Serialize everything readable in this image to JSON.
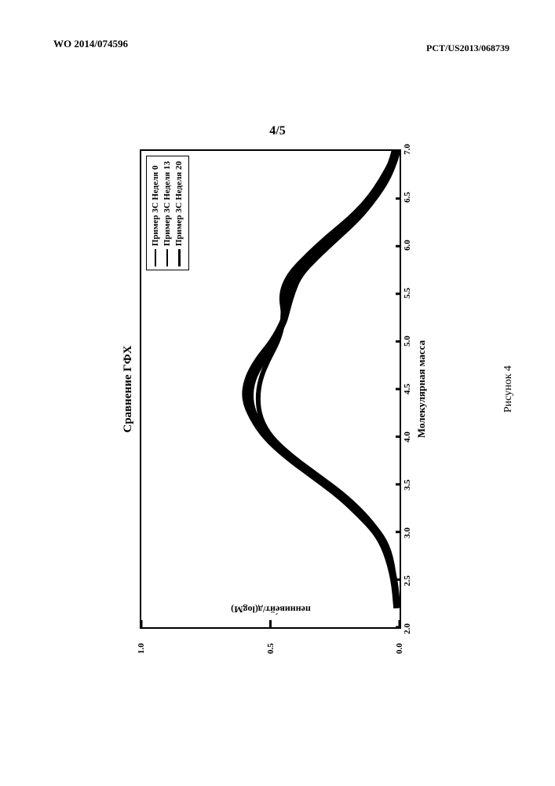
{
  "header": {
    "left": "WO 2014/074596",
    "right": "PCT/US2013/068739"
  },
  "page_counter": "4/5",
  "figure_caption": "Рисунок 4",
  "chart": {
    "type": "line",
    "title": "Сравнение ГФХ",
    "xtitle": "Молекулярная масса",
    "ytitle": "пенниве́йт/д(logM)",
    "xlim": [
      2.0,
      7.0
    ],
    "ylim": [
      0.0,
      1.0
    ],
    "xticks": [
      2.0,
      2.5,
      3.0,
      3.5,
      4.0,
      4.5,
      5.0,
      5.5,
      6.0,
      6.5,
      7.0
    ],
    "yticks": [
      0.0,
      0.5,
      1.0
    ],
    "xtick_labels": [
      "2.0",
      "2.5",
      "3.0",
      "3.5",
      "4.0",
      "4.5",
      "5.0",
      "5.5",
      "6.0",
      "6.5",
      "7.0"
    ],
    "ytick_labels": [
      "0.0",
      "0.5",
      "1.0"
    ],
    "background_color": "#ffffff",
    "border_color": "#000000",
    "line_color": "#000000",
    "tick_fontsize": 11,
    "title_fontsize": 15,
    "label_fontsize": 12,
    "line_width": 2,
    "series": [
      {
        "name": "Пример 3С Неделя 0",
        "color": "#000000",
        "width": 2,
        "points": [
          [
            2.2,
            0.01
          ],
          [
            2.5,
            0.02
          ],
          [
            2.8,
            0.04
          ],
          [
            3.0,
            0.08
          ],
          [
            3.2,
            0.14
          ],
          [
            3.4,
            0.22
          ],
          [
            3.6,
            0.32
          ],
          [
            3.8,
            0.42
          ],
          [
            4.0,
            0.5
          ],
          [
            4.2,
            0.54
          ],
          [
            4.4,
            0.55
          ],
          [
            4.6,
            0.54
          ],
          [
            4.8,
            0.51
          ],
          [
            5.0,
            0.47
          ],
          [
            5.2,
            0.45
          ],
          [
            5.3,
            0.45
          ],
          [
            5.5,
            0.46
          ],
          [
            5.7,
            0.43
          ],
          [
            5.9,
            0.36
          ],
          [
            6.1,
            0.28
          ],
          [
            6.3,
            0.19
          ],
          [
            6.5,
            0.12
          ],
          [
            6.7,
            0.07
          ],
          [
            6.9,
            0.03
          ],
          [
            7.0,
            0.02
          ]
        ]
      },
      {
        "name": "Пример 3С Неделя 13",
        "color": "#000000",
        "width": 2.5,
        "points": [
          [
            2.2,
            0.01
          ],
          [
            2.5,
            0.02
          ],
          [
            2.8,
            0.04
          ],
          [
            3.0,
            0.08
          ],
          [
            3.2,
            0.15
          ],
          [
            3.4,
            0.23
          ],
          [
            3.6,
            0.33
          ],
          [
            3.8,
            0.43
          ],
          [
            4.0,
            0.51
          ],
          [
            4.2,
            0.56
          ],
          [
            4.4,
            0.58
          ],
          [
            4.6,
            0.57
          ],
          [
            4.8,
            0.53
          ],
          [
            5.0,
            0.48
          ],
          [
            5.2,
            0.45
          ],
          [
            5.3,
            0.45
          ],
          [
            5.5,
            0.44
          ],
          [
            5.7,
            0.41
          ],
          [
            5.9,
            0.34
          ],
          [
            6.1,
            0.26
          ],
          [
            6.3,
            0.18
          ],
          [
            6.5,
            0.11
          ],
          [
            6.7,
            0.06
          ],
          [
            6.9,
            0.03
          ],
          [
            7.0,
            0.02
          ]
        ]
      },
      {
        "name": "Пример 3С Неделя 20",
        "color": "#000000",
        "width": 3,
        "points": [
          [
            2.2,
            0.01
          ],
          [
            2.5,
            0.02
          ],
          [
            2.8,
            0.05
          ],
          [
            3.0,
            0.09
          ],
          [
            3.2,
            0.16
          ],
          [
            3.4,
            0.24
          ],
          [
            3.6,
            0.34
          ],
          [
            3.8,
            0.44
          ],
          [
            4.0,
            0.52
          ],
          [
            4.2,
            0.57
          ],
          [
            4.4,
            0.6
          ],
          [
            4.6,
            0.59
          ],
          [
            4.8,
            0.55
          ],
          [
            5.0,
            0.49
          ],
          [
            5.2,
            0.45
          ],
          [
            5.3,
            0.44
          ],
          [
            5.5,
            0.42
          ],
          [
            5.7,
            0.39
          ],
          [
            5.9,
            0.32
          ],
          [
            6.1,
            0.24
          ],
          [
            6.3,
            0.16
          ],
          [
            6.5,
            0.1
          ],
          [
            6.7,
            0.05
          ],
          [
            6.9,
            0.02
          ],
          [
            7.0,
            0.01
          ]
        ]
      }
    ],
    "legend": {
      "position": "top-right",
      "border_color": "#000000",
      "items": [
        {
          "label": "Пример 3С Неделя 0",
          "line_width": 2
        },
        {
          "label": "Пример 3С Неделя 13",
          "line_width": 2.5
        },
        {
          "label": "Пример 3С Неделя 20",
          "line_width": 3
        }
      ]
    }
  }
}
